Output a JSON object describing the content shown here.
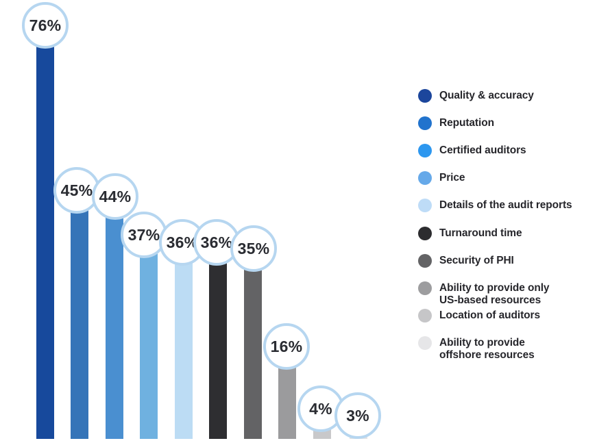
{
  "chart_data": {
    "type": "bar",
    "title": "",
    "xlabel": "",
    "ylabel": "",
    "unit": "%",
    "grid": false,
    "legend_position": "right",
    "ylim": [
      0,
      80
    ],
    "categories": [
      "Quality & accuracy",
      "Reputation",
      "Certified auditors",
      "Price",
      "Details of the audit reports",
      "Turnaround time",
      "Security of PHI",
      "Ability to provide only\nUS-based resources",
      "Location of auditors",
      "Ability to provide\noffshore resources"
    ],
    "values": [
      76,
      45,
      44,
      37,
      36,
      36,
      35,
      16,
      4,
      3
    ],
    "value_labels": [
      "76%",
      "45%",
      "44%",
      "37%",
      "36%",
      "36%",
      "35%",
      "16%",
      "4%",
      "3%"
    ],
    "colors": [
      "#17499c",
      "#3574b8",
      "#4a8fd0",
      "#6fb1e0",
      "#bcdcf4",
      "#2e2e31",
      "#636365",
      "#9b9b9d",
      "#c8c8ca",
      "#e2e2e4"
    ],
    "legend_colors": [
      "#1c469c",
      "#2173cd",
      "#2d97ef",
      "#66a9e9",
      "#bedcf7",
      "#2c2c2f",
      "#636365",
      "#9d9d9f",
      "#c6c6c8",
      "#e6e6e8"
    ]
  },
  "style": {
    "background": "#ffffff",
    "label_circle_fill": "#ffffff",
    "label_circle_border": "#b6d6f0",
    "label_text_color": "#2a2c32",
    "legend_text_color": "#26262b"
  }
}
